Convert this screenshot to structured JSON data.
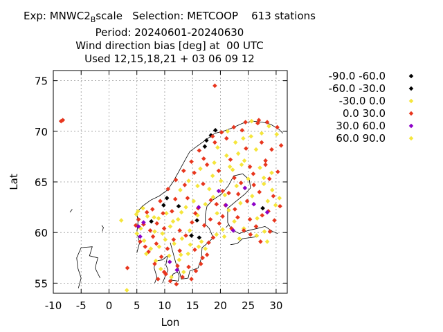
{
  "title": {
    "line1_prefix": "Exp: MNWC2",
    "line1_sub": "B",
    "line1_suffix": "scale   Selection: METCOOP    613 stations",
    "line2": "Period: 20240601-20240630",
    "line3": "Wind direction bias [deg] at  00 UTC",
    "line4": "Used 12,15,18,21 + 03 06 09 12"
  },
  "chart_data": {
    "type": "scatter",
    "xlabel": "Lon",
    "ylabel": "Lat",
    "xlim": [
      -10,
      32
    ],
    "ylim": [
      54,
      76
    ],
    "xticks": [
      -10,
      -5,
      0,
      5,
      10,
      15,
      20,
      25,
      30
    ],
    "yticks": [
      55,
      60,
      65,
      70,
      75
    ],
    "grid": true,
    "legend_position": "right",
    "series": [
      {
        "name": "-90.0 -60.0",
        "color": "#000000",
        "points": [
          [
            17.5,
            69.1
          ],
          [
            18.3,
            69.6
          ],
          [
            12.5,
            62.6
          ],
          [
            9.8,
            62.7
          ],
          [
            15.8,
            61.2
          ],
          [
            27.6,
            62.4
          ]
        ]
      },
      {
        "name": "-60.0 -30.0",
        "color": "#000000",
        "points": [
          [
            17.2,
            68.5
          ],
          [
            19.1,
            70.1
          ],
          [
            10.4,
            63.4
          ],
          [
            7.6,
            61.1
          ],
          [
            14.8,
            59.7
          ],
          [
            16.2,
            59.5
          ]
        ]
      },
      {
        "name": "-30.0 0.0",
        "color": "#f5e63c",
        "points": [
          [
            2.2,
            61.2
          ],
          [
            3.2,
            54.3
          ],
          [
            5.2,
            62.1
          ],
          [
            5.7,
            60.4
          ],
          [
            6.3,
            59.2
          ],
          [
            6.9,
            61.6
          ],
          [
            7.5,
            58.4
          ],
          [
            8.2,
            60.1
          ],
          [
            8.9,
            61.4
          ],
          [
            9.6,
            59.9
          ],
          [
            10.3,
            61.9
          ],
          [
            11.0,
            60.6
          ],
          [
            11.7,
            58.9
          ],
          [
            12.4,
            61.3
          ],
          [
            13.1,
            59.4
          ],
          [
            13.8,
            62.5
          ],
          [
            14.5,
            60.2
          ],
          [
            15.2,
            63.1
          ],
          [
            15.9,
            61.7
          ],
          [
            16.6,
            59.1
          ],
          [
            17.3,
            62.8
          ],
          [
            18.0,
            64.3
          ],
          [
            18.7,
            63.5
          ],
          [
            19.4,
            61.9
          ],
          [
            20.1,
            65.1
          ],
          [
            20.8,
            63.7
          ],
          [
            21.5,
            62.2
          ],
          [
            22.2,
            66.2
          ],
          [
            22.9,
            64.6
          ],
          [
            23.6,
            62.9
          ],
          [
            24.3,
            67.1
          ],
          [
            25.0,
            65.3
          ],
          [
            25.7,
            63.6
          ],
          [
            26.4,
            68.2
          ],
          [
            27.1,
            66.4
          ],
          [
            27.8,
            64.8
          ],
          [
            28.5,
            63.1
          ],
          [
            29.2,
            65.9
          ],
          [
            29.9,
            62.7
          ],
          [
            30.6,
            63.4
          ],
          [
            26.6,
            61.4
          ],
          [
            27.9,
            60.1
          ],
          [
            28.4,
            59.1
          ],
          [
            24.2,
            60.4
          ],
          [
            22.5,
            61.1
          ],
          [
            20.4,
            60.3
          ],
          [
            19.3,
            59.8
          ],
          [
            13.4,
            56.1
          ],
          [
            11.2,
            55.6
          ],
          [
            9.3,
            56.4
          ],
          [
            8.4,
            57.2
          ],
          [
            10.8,
            57.7
          ],
          [
            12.6,
            57.3
          ],
          [
            14.2,
            57.9
          ],
          [
            16.1,
            58.6
          ],
          [
            6.1,
            62.4
          ],
          [
            4.9,
            61.8
          ],
          [
            21.3,
            70.0
          ],
          [
            24.1,
            69.3
          ],
          [
            27.4,
            69.8
          ],
          [
            28.7,
            70.5
          ],
          [
            30.1,
            69.7
          ],
          [
            25.6,
            71.0
          ],
          [
            19.5,
            68.4
          ],
          [
            22.7,
            68.9
          ],
          [
            16.4,
            66.3
          ],
          [
            14.3,
            65.1
          ],
          [
            12.8,
            64.2
          ],
          [
            18.9,
            66.9
          ],
          [
            21.1,
            67.6
          ],
          [
            23.8,
            66.7
          ]
        ]
      },
      {
        "name": "0.0 30.0",
        "color": "#e8361e",
        "points": [
          [
            -8.6,
            71.0
          ],
          [
            -8.3,
            71.1
          ],
          [
            19.0,
            74.5
          ],
          [
            3.3,
            56.5
          ],
          [
            5.6,
            59.1
          ],
          [
            6.2,
            60.8
          ],
          [
            7.1,
            58.1
          ],
          [
            7.8,
            62.3
          ],
          [
            8.5,
            58.9
          ],
          [
            9.2,
            63.1
          ],
          [
            9.9,
            60.4
          ],
          [
            10.6,
            64.3
          ],
          [
            11.3,
            62.1
          ],
          [
            12.0,
            65.2
          ],
          [
            12.7,
            60.2
          ],
          [
            13.4,
            66.1
          ],
          [
            14.1,
            63.4
          ],
          [
            14.8,
            67.0
          ],
          [
            15.5,
            61.9
          ],
          [
            16.2,
            68.1
          ],
          [
            16.9,
            64.8
          ],
          [
            17.6,
            66.7
          ],
          [
            18.3,
            63.2
          ],
          [
            19.0,
            68.9
          ],
          [
            19.7,
            66.1
          ],
          [
            20.4,
            64.1
          ],
          [
            21.1,
            69.3
          ],
          [
            21.8,
            67.2
          ],
          [
            22.5,
            65.4
          ],
          [
            23.2,
            63.8
          ],
          [
            23.9,
            70.1
          ],
          [
            24.6,
            68.3
          ],
          [
            25.3,
            66.5
          ],
          [
            26.0,
            64.7
          ],
          [
            26.7,
            70.8
          ],
          [
            27.4,
            68.9
          ],
          [
            28.1,
            67.1
          ],
          [
            28.8,
            65.3
          ],
          [
            29.5,
            63.6
          ],
          [
            30.2,
            70.4
          ],
          [
            30.9,
            68.6
          ],
          [
            29.7,
            61.2
          ],
          [
            28.6,
            62.1
          ],
          [
            27.5,
            61.7
          ],
          [
            26.4,
            60.6
          ],
          [
            25.3,
            61.3
          ],
          [
            24.2,
            60.2
          ],
          [
            23.1,
            61.5
          ],
          [
            22.0,
            60.4
          ],
          [
            20.9,
            62.7
          ],
          [
            19.8,
            60.9
          ],
          [
            18.7,
            59.5
          ],
          [
            17.6,
            57.8
          ],
          [
            16.5,
            56.9
          ],
          [
            15.4,
            58.3
          ],
          [
            14.3,
            56.6
          ],
          [
            13.2,
            55.6
          ],
          [
            12.1,
            54.9
          ],
          [
            11.0,
            55.2
          ],
          [
            9.9,
            56.1
          ],
          [
            8.8,
            55.4
          ],
          [
            8.2,
            56.9
          ],
          [
            9.4,
            57.6
          ],
          [
            10.5,
            58.4
          ],
          [
            11.6,
            59.3
          ],
          [
            12.7,
            58.2
          ],
          [
            13.8,
            59.7
          ],
          [
            14.9,
            61.0
          ],
          [
            16.0,
            62.4
          ],
          [
            17.1,
            60.7
          ],
          [
            18.2,
            61.3
          ],
          [
            19.3,
            62.8
          ],
          [
            20.4,
            61.6
          ],
          [
            21.5,
            63.9
          ],
          [
            22.6,
            62.3
          ],
          [
            23.7,
            64.9
          ],
          [
            24.8,
            63.1
          ],
          [
            25.9,
            65.8
          ],
          [
            27.0,
            64.0
          ],
          [
            28.1,
            66.7
          ],
          [
            29.2,
            68.2
          ],
          [
            30.3,
            66.0
          ],
          [
            6.8,
            62.0
          ],
          [
            7.4,
            60.2
          ],
          [
            5.3,
            61.3
          ],
          [
            4.8,
            60.7
          ],
          [
            9.7,
            61.9
          ],
          [
            11.9,
            63.3
          ],
          [
            13.6,
            64.7
          ],
          [
            15.3,
            65.9
          ],
          [
            17.0,
            67.3
          ],
          [
            18.6,
            69.5
          ],
          [
            20.2,
            69.9
          ],
          [
            22.4,
            70.4
          ],
          [
            24.5,
            70.9
          ],
          [
            26.9,
            71.1
          ],
          [
            28.4,
            70.9
          ],
          [
            12.3,
            56.7
          ],
          [
            10.2,
            55.9
          ],
          [
            14.8,
            55.4
          ],
          [
            15.6,
            56.2
          ],
          [
            16.8,
            57.5
          ],
          [
            17.9,
            59.0
          ],
          [
            7.9,
            59.6
          ],
          [
            8.6,
            60.9
          ],
          [
            6.5,
            58.6
          ],
          [
            25.4,
            59.8
          ],
          [
            27.2,
            59.1
          ],
          [
            28.9,
            60.1
          ],
          [
            30.7,
            62.6
          ]
        ]
      },
      {
        "name": "30.0 60.0",
        "color": "#8c00c8",
        "points": [
          [
            5.3,
            60.6
          ],
          [
            5.6,
            59.6
          ],
          [
            6.2,
            61.0
          ],
          [
            24.4,
            64.4
          ],
          [
            28.4,
            62.0
          ],
          [
            26.0,
            62.8
          ],
          [
            16.1,
            62.5
          ],
          [
            19.7,
            64.1
          ],
          [
            21.0,
            62.7
          ],
          [
            22.3,
            60.2
          ],
          [
            12.2,
            56.3
          ],
          [
            10.9,
            57.1
          ]
        ]
      },
      {
        "name": "60.0 90.0",
        "color": "#f5e63c",
        "points": [
          [
            5.0,
            59.9
          ],
          [
            6.7,
            57.9
          ],
          [
            9.0,
            58.6
          ],
          [
            13.0,
            62.0
          ],
          [
            15.9,
            64.6
          ],
          [
            18.6,
            65.6
          ],
          [
            21.7,
            66.5
          ],
          [
            23.2,
            67.8
          ],
          [
            25.5,
            69.5
          ],
          [
            27.8,
            65.4
          ],
          [
            29.3,
            64.2
          ],
          [
            26.5,
            59.7
          ],
          [
            23.4,
            59.4
          ],
          [
            20.7,
            59.6
          ],
          [
            17.3,
            58.4
          ],
          [
            14.6,
            58.8
          ],
          [
            11.5,
            61.1
          ],
          [
            8.1,
            61.5
          ],
          [
            10.1,
            59.3
          ],
          [
            12.9,
            57.8
          ]
        ]
      }
    ]
  }
}
